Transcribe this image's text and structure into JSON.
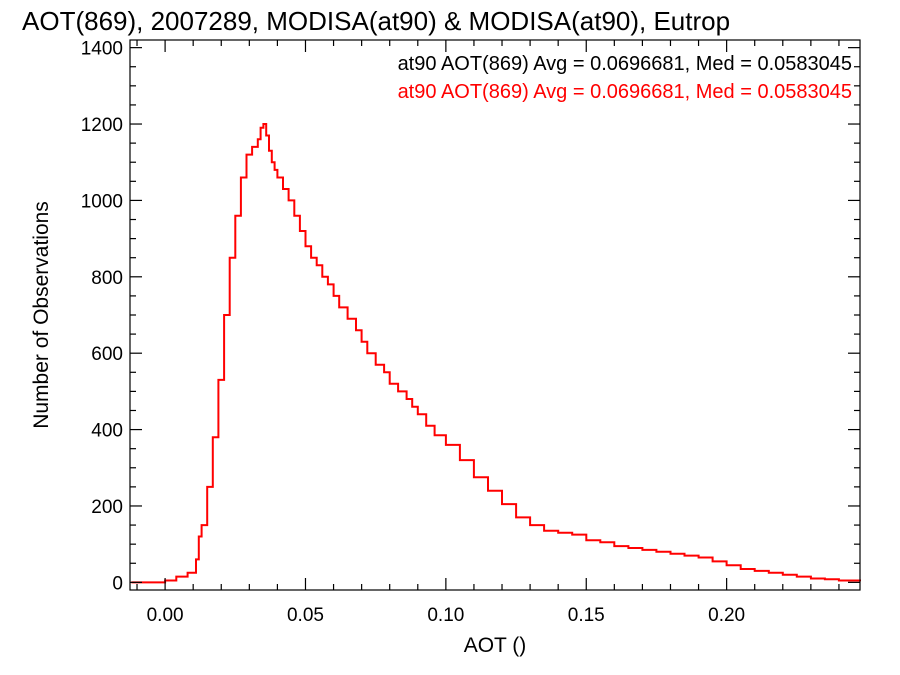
{
  "chart_data": {
    "type": "line",
    "step": true,
    "title": "AOT(869), 2007289, MODISA(at90) & MODISA(at90), Eutrop",
    "xlabel": "AOT ()",
    "ylabel": "Number of Observations",
    "xlim": [
      -0.0125,
      0.2475
    ],
    "ylim": [
      -20,
      1420
    ],
    "x_ticks": [
      0.0,
      0.05,
      0.1,
      0.15,
      0.2
    ],
    "x_tick_labels": [
      "0.00",
      "0.05",
      "0.10",
      "0.15",
      "0.20"
    ],
    "y_ticks": [
      0,
      200,
      400,
      600,
      800,
      1000,
      1200,
      1400
    ],
    "y_tick_labels": [
      "0",
      "200",
      "400",
      "600",
      "800",
      "1000",
      "1200",
      "1400"
    ],
    "annotations": [
      {
        "text": "at90 AOT(869) Avg = 0.0696681, Med = 0.0583045",
        "color": "#000000"
      },
      {
        "text": "at90 AOT(869) Avg = 0.0696681, Med = 0.0583045",
        "color": "#ff0000"
      }
    ],
    "series": [
      {
        "color": "#000000",
        "x": [
          -0.012,
          -0.005,
          0.0,
          0.004,
          0.008,
          0.011,
          0.012,
          0.013,
          0.015,
          0.017,
          0.019,
          0.021,
          0.023,
          0.025,
          0.027,
          0.029,
          0.031,
          0.033,
          0.034,
          0.035,
          0.036,
          0.037,
          0.038,
          0.039,
          0.04,
          0.042,
          0.044,
          0.046,
          0.048,
          0.05,
          0.052,
          0.054,
          0.056,
          0.058,
          0.06,
          0.062,
          0.065,
          0.068,
          0.07,
          0.072,
          0.075,
          0.078,
          0.08,
          0.083,
          0.086,
          0.088,
          0.09,
          0.093,
          0.096,
          0.1,
          0.105,
          0.11,
          0.115,
          0.12,
          0.125,
          0.13,
          0.135,
          0.14,
          0.145,
          0.15,
          0.155,
          0.16,
          0.165,
          0.17,
          0.175,
          0.18,
          0.185,
          0.19,
          0.195,
          0.2,
          0.205,
          0.21,
          0.215,
          0.22,
          0.225,
          0.23,
          0.235,
          0.24,
          0.2475
        ],
        "y": [
          0,
          0,
          5,
          15,
          25,
          60,
          120,
          150,
          250,
          380,
          530,
          700,
          850,
          960,
          1060,
          1120,
          1140,
          1160,
          1190,
          1200,
          1170,
          1130,
          1100,
          1080,
          1060,
          1030,
          1000,
          960,
          920,
          880,
          850,
          830,
          800,
          780,
          750,
          720,
          690,
          660,
          630,
          600,
          570,
          550,
          520,
          500,
          480,
          460,
          440,
          410,
          385,
          360,
          320,
          275,
          240,
          205,
          170,
          150,
          135,
          130,
          125,
          110,
          105,
          95,
          90,
          85,
          80,
          75,
          70,
          65,
          55,
          45,
          35,
          30,
          25,
          20,
          15,
          10,
          8,
          5,
          3
        ]
      },
      {
        "color": "#ff0000",
        "x": [
          -0.012,
          -0.005,
          0.0,
          0.004,
          0.008,
          0.011,
          0.012,
          0.013,
          0.015,
          0.017,
          0.019,
          0.021,
          0.023,
          0.025,
          0.027,
          0.029,
          0.031,
          0.033,
          0.034,
          0.035,
          0.036,
          0.037,
          0.038,
          0.039,
          0.04,
          0.042,
          0.044,
          0.046,
          0.048,
          0.05,
          0.052,
          0.054,
          0.056,
          0.058,
          0.06,
          0.062,
          0.065,
          0.068,
          0.07,
          0.072,
          0.075,
          0.078,
          0.08,
          0.083,
          0.086,
          0.088,
          0.09,
          0.093,
          0.096,
          0.1,
          0.105,
          0.11,
          0.115,
          0.12,
          0.125,
          0.13,
          0.135,
          0.14,
          0.145,
          0.15,
          0.155,
          0.16,
          0.165,
          0.17,
          0.175,
          0.18,
          0.185,
          0.19,
          0.195,
          0.2,
          0.205,
          0.21,
          0.215,
          0.22,
          0.225,
          0.23,
          0.235,
          0.24,
          0.2475
        ],
        "y": [
          0,
          0,
          5,
          15,
          25,
          60,
          120,
          150,
          250,
          380,
          530,
          700,
          850,
          960,
          1060,
          1120,
          1140,
          1160,
          1190,
          1200,
          1170,
          1130,
          1100,
          1080,
          1060,
          1030,
          1000,
          960,
          920,
          880,
          850,
          830,
          800,
          780,
          750,
          720,
          690,
          660,
          630,
          600,
          570,
          550,
          520,
          500,
          480,
          460,
          440,
          410,
          385,
          360,
          320,
          275,
          240,
          205,
          170,
          150,
          135,
          130,
          125,
          110,
          105,
          95,
          90,
          85,
          80,
          75,
          70,
          65,
          55,
          45,
          35,
          30,
          25,
          20,
          15,
          10,
          8,
          5,
          3
        ]
      }
    ]
  }
}
